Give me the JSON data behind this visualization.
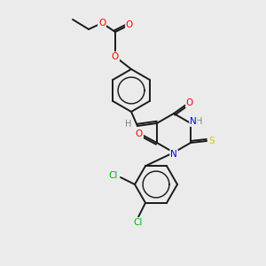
{
  "background_color": "#ebebeb",
  "bond_color": "#1a1a1a",
  "atom_colors": {
    "O": "#ff0000",
    "N": "#0000ff",
    "S": "#cccc00",
    "Cl": "#00bb00",
    "H": "#808080",
    "C": "#1a1a1a"
  },
  "figsize": [
    3.0,
    3.0
  ],
  "dpi": 100,
  "lw": 1.4,
  "fs": 7.5
}
